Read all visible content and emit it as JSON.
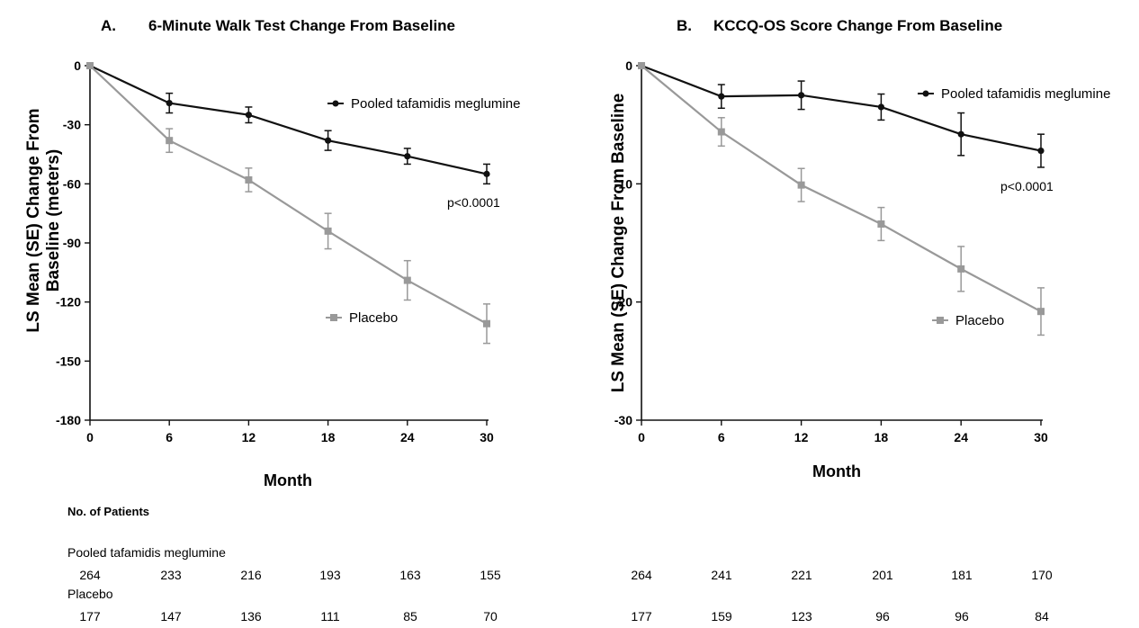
{
  "chart_data": [
    {
      "type": "line",
      "panel": "A.",
      "title": "6-Minute Walk Test  Change From Baseline",
      "xlabel": "Month",
      "ylabel_line1": "LS Mean (SE) Change From",
      "ylabel_line2": "Baseline (meters)",
      "x": [
        0,
        6,
        12,
        18,
        24,
        30
      ],
      "xlim": [
        0,
        30
      ],
      "ylim": [
        -180,
        0
      ],
      "yticks": [
        0,
        -30,
        -60,
        -90,
        -120,
        -150,
        -180
      ],
      "xticks": [
        0,
        6,
        12,
        18,
        24,
        30
      ],
      "grid": false,
      "annotation": "p<0.0001",
      "series": [
        {
          "name": "Pooled tafamidis meglumine",
          "color": "#111111",
          "values": [
            0,
            -19,
            -25,
            -38,
            -46,
            -55
          ],
          "se": [
            0,
            5,
            4,
            5,
            4,
            5
          ]
        },
        {
          "name": "Placebo",
          "color": "#999999",
          "values": [
            0,
            -38,
            -58,
            -84,
            -109,
            -131
          ],
          "se": [
            0,
            6,
            6,
            9,
            10,
            10
          ]
        }
      ]
    },
    {
      "type": "line",
      "panel": "B.",
      "title": "KCCQ-OS Score Change From Baseline",
      "xlabel": "Month",
      "ylabel": "LS Mean (SE) Change From Baseline",
      "x": [
        0,
        6,
        12,
        18,
        24,
        30
      ],
      "xlim": [
        0,
        30
      ],
      "ylim": [
        -30,
        0
      ],
      "yticks": [
        0,
        -10,
        -20,
        -30
      ],
      "xticks": [
        0,
        6,
        12,
        18,
        24,
        30
      ],
      "grid": false,
      "annotation": "p<0.0001",
      "series": [
        {
          "name": "Pooled tafamidis meglumine",
          "color": "#111111",
          "values": [
            0,
            -2.6,
            -2.5,
            -3.5,
            -5.8,
            -7.2
          ],
          "se": [
            0,
            1.0,
            1.2,
            1.1,
            1.8,
            1.4
          ]
        },
        {
          "name": "Placebo",
          "color": "#999999",
          "values": [
            0,
            -5.6,
            -10.1,
            -13.4,
            -17.2,
            -20.8
          ],
          "se": [
            0,
            1.2,
            1.4,
            1.4,
            1.9,
            2.0
          ]
        }
      ]
    }
  ],
  "patients_table": {
    "heading": "No. of Patients",
    "pooled_label": "Pooled tafamidis meglumine",
    "placebo_label": "Placebo",
    "panel_a": {
      "pooled": [
        "264",
        "233",
        "216",
        "193",
        "163",
        "155"
      ],
      "placebo": [
        "177",
        "147",
        "136",
        "111",
        "85",
        "70"
      ]
    },
    "panel_b": {
      "pooled": [
        "264",
        "241",
        "221",
        "201",
        "181",
        "170"
      ],
      "placebo": [
        "177",
        "159",
        "123",
        "96",
        "96",
        "84"
      ]
    }
  }
}
